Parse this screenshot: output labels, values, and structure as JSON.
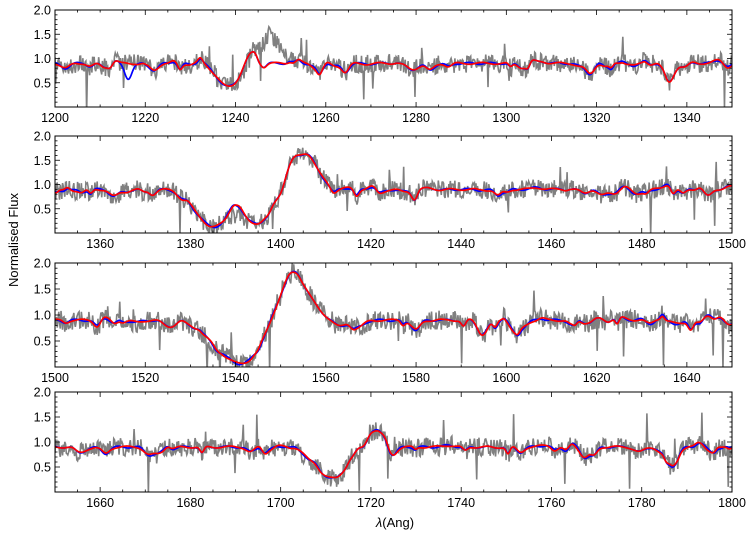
{
  "chart_data": {
    "type": "line",
    "ylabel": "Normalised Flux",
    "xlabel_symbol": "λ",
    "xlabel_unit": "(Ang)",
    "colors": {
      "observed": "#808080",
      "model_blue": "#0000ff",
      "model_red": "#ff0000"
    },
    "panels": [
      {
        "xlim": [
          1200,
          1350
        ],
        "ylim": [
          0,
          2.0
        ],
        "xticks": [
          1200,
          1220,
          1240,
          1260,
          1280,
          1300,
          1320,
          1340
        ],
        "yticks": [
          0.5,
          1.0,
          1.5,
          2.0
        ],
        "features": [
          {
            "c": 1215.5,
            "w": 9,
            "d": 0.0,
            "target": "obs"
          },
          {
            "c": 1216.2,
            "w": 0.8,
            "d": 0.35,
            "target": "blue"
          },
          {
            "c": 1238.5,
            "w": 2.5,
            "d": 0.55,
            "target": "all"
          },
          {
            "c": 1247,
            "w": 2.5,
            "d": -0.7,
            "target": "obs"
          },
          {
            "c": 1243.5,
            "w": 1.5,
            "d": -0.3,
            "target": "models"
          },
          {
            "c": 1336,
            "w": 1.0,
            "d": 0.35,
            "target": "all"
          }
        ]
      },
      {
        "xlim": [
          1350,
          1500
        ],
        "ylim": [
          0,
          2.0
        ],
        "xticks": [
          1360,
          1380,
          1400,
          1420,
          1440,
          1460,
          1480,
          1500
        ],
        "yticks": [
          0.5,
          1.0,
          1.5,
          2.0
        ],
        "features": [
          {
            "c": 1385,
            "w": 3.5,
            "d": 0.85,
            "target": "all"
          },
          {
            "c": 1395,
            "w": 3.5,
            "d": 0.75,
            "target": "all"
          },
          {
            "c": 1390,
            "w": 1.2,
            "d": -0.25,
            "target": "models"
          },
          {
            "c": 1404.5,
            "w": 3.0,
            "d": -0.95,
            "target": "all"
          }
        ]
      },
      {
        "xlim": [
          1500,
          1650
        ],
        "ylim": [
          0,
          2.0
        ],
        "xticks": [
          1500,
          1520,
          1540,
          1560,
          1580,
          1600,
          1620,
          1640
        ],
        "yticks": [
          0.5,
          1.0,
          1.5,
          2.0
        ],
        "features": [
          {
            "c": 1541,
            "w": 5.5,
            "d": 0.92,
            "target": "all"
          },
          {
            "c": 1552.5,
            "w": 3.5,
            "d": -1.05,
            "target": "all"
          },
          {
            "c": 1646,
            "w": 1.5,
            "d": -0.2,
            "target": "all"
          }
        ]
      },
      {
        "xlim": [
          1650,
          1800
        ],
        "ylim": [
          0,
          2.0
        ],
        "xticks": [
          1660,
          1680,
          1700,
          1720,
          1740,
          1760,
          1780,
          1800
        ],
        "yticks": [
          0.5,
          1.0,
          1.5,
          2.0
        ],
        "features": [
          {
            "c": 1711.5,
            "w": 3.5,
            "d": 0.65,
            "target": "all"
          },
          {
            "c": 1720.5,
            "w": 1.8,
            "d": -0.4,
            "target": "all"
          }
        ]
      }
    ]
  }
}
